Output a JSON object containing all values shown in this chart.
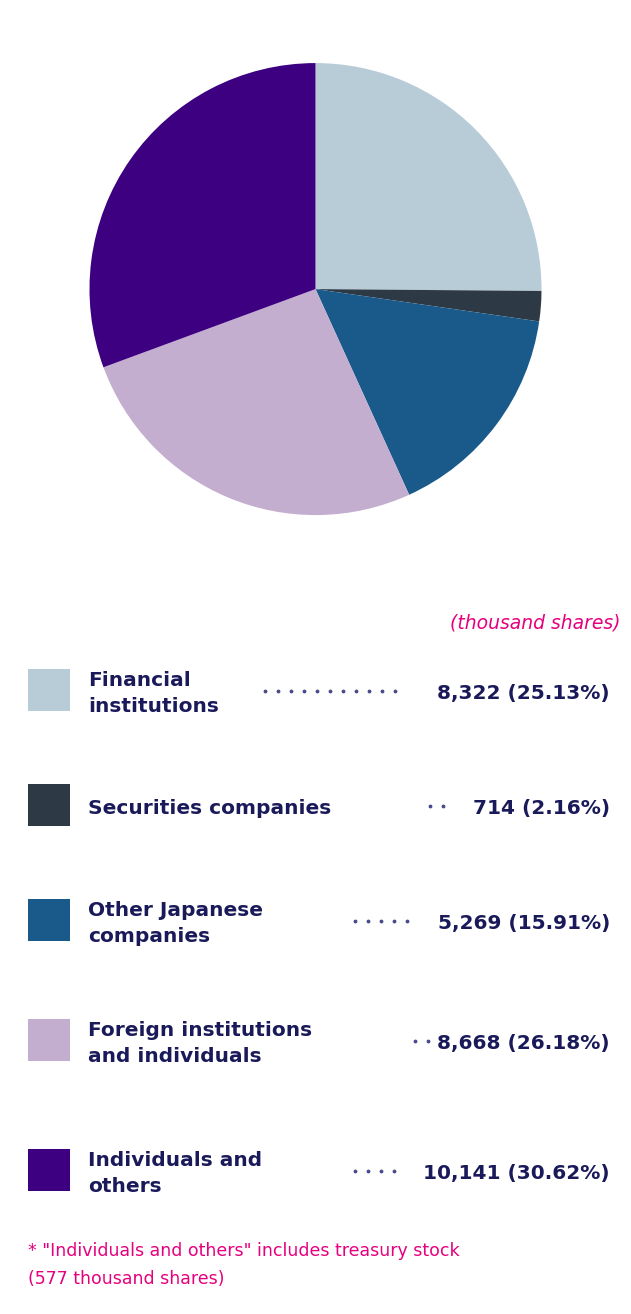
{
  "slices": [
    {
      "label": "Financial institutions",
      "value": 8322,
      "pct": 25.13,
      "color": "#b8ccd8",
      "value_str": "8,322 (25.13%)"
    },
    {
      "label": "Securities companies",
      "value": 714,
      "pct": 2.16,
      "color": "#2d3a45",
      "value_str": "714 (2.16%)"
    },
    {
      "label": "Other Japanese companies",
      "value": 5269,
      "pct": 15.91,
      "color": "#1a5a8a",
      "value_str": "5,269 (15.91%)"
    },
    {
      "label": "Foreign institutions and individuals",
      "value": 8668,
      "pct": 26.18,
      "color": "#c4aed0",
      "value_str": "8,668 (26.18%)"
    },
    {
      "label": "Individuals and others",
      "value": 10141,
      "pct": 30.62,
      "color": "#3d0080",
      "value_str": "10,141 (30.62%)"
    }
  ],
  "unit_text": "(thousand shares)",
  "unit_color": "#e6007e",
  "label_colors": [
    "#b8ccd8",
    "#2d3a45",
    "#1a5a8a",
    "#c4aed0",
    "#3d0080"
  ],
  "legend_labels_line1": [
    "Financial",
    "Securities companies",
    "Other Japanese",
    "Foreign institutions",
    "Individuals and"
  ],
  "legend_labels_line2": [
    "institutions",
    "",
    "companies",
    "and individuals",
    "others"
  ],
  "legend_value_strs": [
    "8,322 (25.13%)",
    "714 (2.16%)",
    "5,269 (15.91%)",
    "8,668 (26.18%)",
    "10,141 (30.62%)"
  ],
  "text_color": "#1a1a5a",
  "footnote_line1": "* \"Individuals and others\" includes treasury stock",
  "footnote_line2": "(577 thousand shares)",
  "footnote_color": "#e6007e",
  "startangle": 90
}
